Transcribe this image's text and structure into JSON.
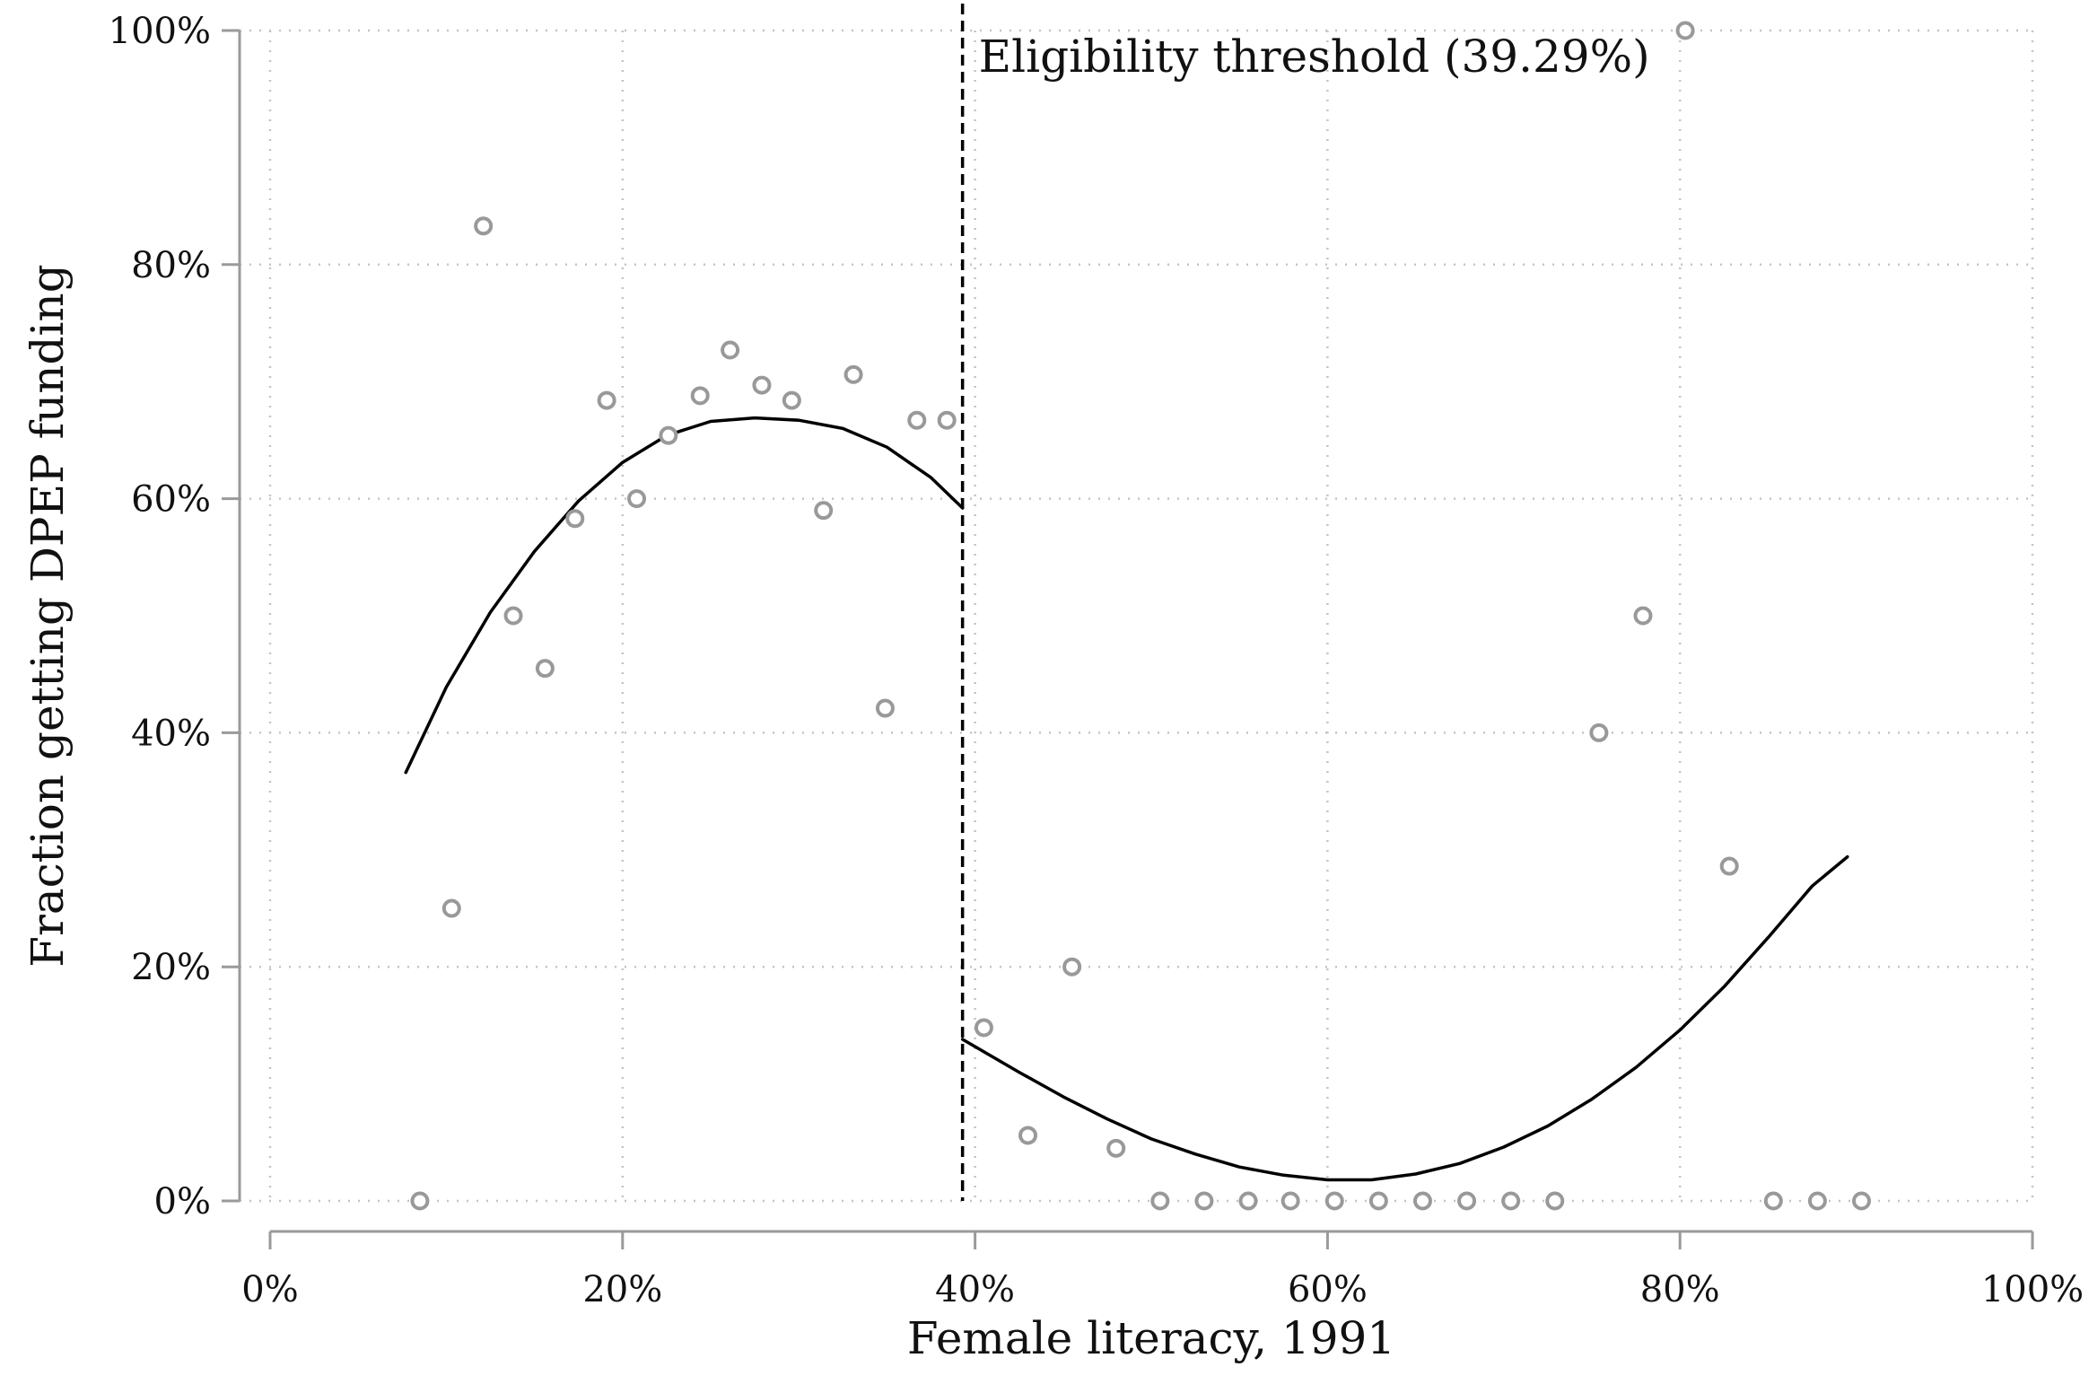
{
  "chart_data": {
    "type": "scatter",
    "title": "",
    "xlabel": "Female literacy, 1991",
    "ylabel": "Fraction getting DPEP funding",
    "xlim": [
      0,
      100
    ],
    "ylim": [
      0,
      100
    ],
    "x_ticks": [
      0,
      20,
      40,
      60,
      80,
      100
    ],
    "y_ticks": [
      0,
      20,
      40,
      60,
      80,
      100
    ],
    "x_tick_labels": [
      "0%",
      "20%",
      "40%",
      "60%",
      "80%",
      "100%"
    ],
    "y_tick_labels": [
      "0%",
      "20%",
      "40%",
      "60%",
      "80%",
      "100%"
    ],
    "grid": true,
    "legend": "none",
    "threshold": {
      "x": 39.29,
      "label": "Eligibility threshold (39.29%)"
    },
    "points": [
      {
        "x": 8.5,
        "y": 0
      },
      {
        "x": 10.3,
        "y": 25
      },
      {
        "x": 12.1,
        "y": 83.3
      },
      {
        "x": 13.8,
        "y": 50
      },
      {
        "x": 15.6,
        "y": 45.5
      },
      {
        "x": 17.3,
        "y": 58.3
      },
      {
        "x": 19.1,
        "y": 68.4
      },
      {
        "x": 20.8,
        "y": 60
      },
      {
        "x": 22.6,
        "y": 65.4
      },
      {
        "x": 24.4,
        "y": 68.8
      },
      {
        "x": 26.1,
        "y": 72.7
      },
      {
        "x": 27.9,
        "y": 69.7
      },
      {
        "x": 29.6,
        "y": 68.4
      },
      {
        "x": 31.4,
        "y": 59
      },
      {
        "x": 33.1,
        "y": 70.6
      },
      {
        "x": 34.9,
        "y": 42.1
      },
      {
        "x": 36.7,
        "y": 66.7
      },
      {
        "x": 38.4,
        "y": 66.7
      },
      {
        "x": 40.5,
        "y": 14.8
      },
      {
        "x": 43.0,
        "y": 5.6
      },
      {
        "x": 45.5,
        "y": 20
      },
      {
        "x": 48.0,
        "y": 4.5
      },
      {
        "x": 50.5,
        "y": 0
      },
      {
        "x": 53.0,
        "y": 0
      },
      {
        "x": 55.5,
        "y": 0
      },
      {
        "x": 57.9,
        "y": 0
      },
      {
        "x": 60.4,
        "y": 0
      },
      {
        "x": 62.9,
        "y": 0
      },
      {
        "x": 65.4,
        "y": 0
      },
      {
        "x": 67.9,
        "y": 0
      },
      {
        "x": 70.4,
        "y": 0
      },
      {
        "x": 72.9,
        "y": 0
      },
      {
        "x": 75.4,
        "y": 40
      },
      {
        "x": 77.9,
        "y": 50
      },
      {
        "x": 80.3,
        "y": 100
      },
      {
        "x": 82.8,
        "y": 28.6
      },
      {
        "x": 85.3,
        "y": 0
      },
      {
        "x": 87.8,
        "y": 0
      },
      {
        "x": 90.3,
        "y": 0
      }
    ],
    "fit_left": [
      {
        "x": 7.7,
        "y": 36.6
      },
      {
        "x": 10.0,
        "y": 43.9
      },
      {
        "x": 12.5,
        "y": 50.3
      },
      {
        "x": 15.0,
        "y": 55.5
      },
      {
        "x": 17.5,
        "y": 59.8
      },
      {
        "x": 20.0,
        "y": 63.1
      },
      {
        "x": 22.5,
        "y": 65.4
      },
      {
        "x": 25.0,
        "y": 66.6
      },
      {
        "x": 27.5,
        "y": 66.9
      },
      {
        "x": 30.0,
        "y": 66.7
      },
      {
        "x": 32.5,
        "y": 66.0
      },
      {
        "x": 35.0,
        "y": 64.4
      },
      {
        "x": 37.5,
        "y": 61.8
      },
      {
        "x": 39.29,
        "y": 59.2
      }
    ],
    "fit_right": [
      {
        "x": 39.29,
        "y": 13.8
      },
      {
        "x": 42.5,
        "y": 11.0
      },
      {
        "x": 45.0,
        "y": 8.9
      },
      {
        "x": 47.5,
        "y": 7.0
      },
      {
        "x": 50.0,
        "y": 5.3
      },
      {
        "x": 52.5,
        "y": 4.0
      },
      {
        "x": 55.0,
        "y": 2.9
      },
      {
        "x": 57.5,
        "y": 2.2
      },
      {
        "x": 60.0,
        "y": 1.8
      },
      {
        "x": 62.5,
        "y": 1.8
      },
      {
        "x": 65.0,
        "y": 2.3
      },
      {
        "x": 67.5,
        "y": 3.2
      },
      {
        "x": 70.0,
        "y": 4.6
      },
      {
        "x": 72.5,
        "y": 6.4
      },
      {
        "x": 75.0,
        "y": 8.7
      },
      {
        "x": 77.5,
        "y": 11.4
      },
      {
        "x": 80.0,
        "y": 14.6
      },
      {
        "x": 82.5,
        "y": 18.3
      },
      {
        "x": 85.0,
        "y": 22.5
      },
      {
        "x": 87.5,
        "y": 26.9
      },
      {
        "x": 89.5,
        "y": 29.4
      }
    ],
    "colors": {
      "marker": "#999999",
      "fit": "#000000",
      "threshold": "#000000",
      "grid": "#c4c4c4",
      "axis": "#9a9a9a"
    }
  }
}
